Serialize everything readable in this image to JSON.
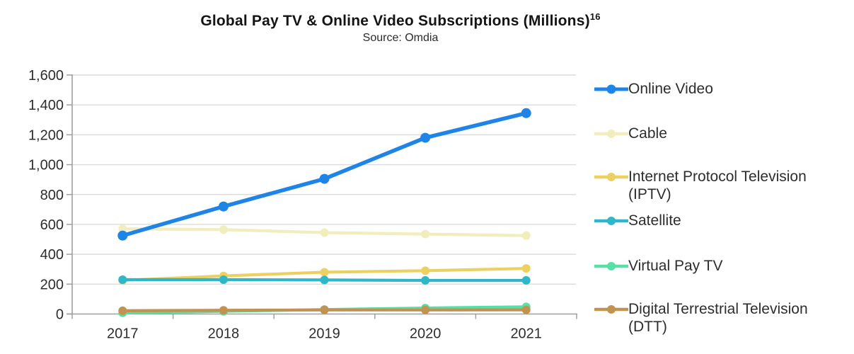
{
  "header": {
    "title": "Global Pay TV & Online Video Subscriptions (Millions)",
    "title_superscript": "16",
    "source": "Source: Omdia"
  },
  "chart_data": {
    "type": "line",
    "categories": [
      "2017",
      "2018",
      "2019",
      "2020",
      "2021"
    ],
    "series": [
      {
        "name": "Online Video",
        "color": "#1e84e8",
        "values": [
          525,
          720,
          905,
          1180,
          1345
        ]
      },
      {
        "name": "Cable",
        "color": "#f1edbd",
        "values": [
          570,
          565,
          545,
          535,
          525
        ]
      },
      {
        "name": "Internet Protocol Television (IPTV)",
        "color": "#ecd162",
        "values": [
          225,
          255,
          280,
          290,
          305
        ]
      },
      {
        "name": "Satellite",
        "color": "#30b6c9",
        "values": [
          230,
          230,
          228,
          225,
          225
        ]
      },
      {
        "name": "Virtual Pay TV",
        "color": "#57e0a6",
        "values": [
          8,
          18,
          30,
          40,
          48
        ]
      },
      {
        "name": "Digital Terrestrial Television (DTT)",
        "color": "#c29350",
        "values": [
          22,
          25,
          27,
          27,
          28
        ]
      }
    ],
    "title": "Global Pay TV & Online Video Subscriptions (Millions)",
    "subtitle": "Source: Omdia",
    "xlabel": "",
    "ylabel": "",
    "ylim": [
      0,
      1600
    ],
    "ytick_step": 200,
    "ytick_labels": [
      "0",
      "200",
      "400",
      "600",
      "800",
      "1,000",
      "1,200",
      "1,400",
      "1,600"
    ],
    "grid": "horizontal",
    "legend_position": "right"
  },
  "legend": {
    "items": [
      {
        "line1": "Online Video",
        "line2": ""
      },
      {
        "line1": "Cable",
        "line2": ""
      },
      {
        "line1": "Internet Protocol Television",
        "line2": "(IPTV)"
      },
      {
        "line1": "Satellite",
        "line2": ""
      },
      {
        "line1": "Virtual Pay TV",
        "line2": ""
      },
      {
        "line1": "Digital Terrestrial Television",
        "line2": "(DTT)"
      }
    ]
  },
  "colors": {
    "gridline": "#dcdcdc",
    "axis": "#9f9f9f",
    "axis_text": "#2d2d2d"
  }
}
